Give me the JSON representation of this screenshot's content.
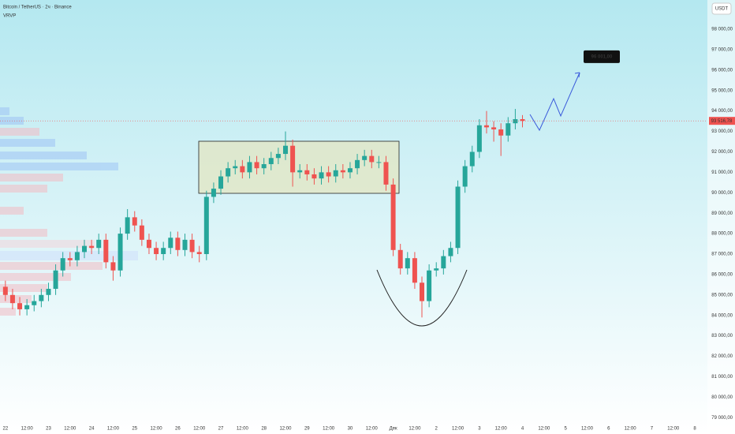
{
  "chart_data": {
    "type": "candlestick",
    "title": "Bitcoin / TetherUS · 2ч · Binance",
    "subtitle": "VRVP",
    "currency_button": "USDT",
    "up_color": "#26a69a",
    "down_color": "#ef5350",
    "x": [
      0,
      4,
      8,
      12,
      16,
      20,
      24,
      28,
      32,
      36,
      40,
      44,
      48,
      52,
      56,
      60,
      64,
      68,
      72,
      76,
      80,
      84,
      88,
      92,
      96,
      100,
      104,
      108,
      112,
      116,
      120,
      124,
      128,
      132,
      136,
      140,
      144,
      148,
      152,
      156,
      160,
      164,
      168,
      172,
      176,
      180,
      184,
      188,
      192,
      196,
      200,
      204,
      208,
      212,
      216,
      220,
      224,
      228,
      232,
      236,
      240,
      244,
      248,
      252,
      256,
      260,
      264,
      268,
      272,
      276,
      280,
      284,
      288
    ],
    "open": [
      85400,
      85000,
      84600,
      84300,
      84500,
      84700,
      85000,
      85300,
      86200,
      86800,
      86700,
      87100,
      87400,
      87300,
      87700,
      86600,
      86200,
      88000,
      88800,
      88400,
      87700,
      87300,
      87000,
      87300,
      87800,
      87200,
      87700,
      87100,
      87000,
      89800,
      90200,
      90800,
      91200,
      91300,
      91000,
      91500,
      91200,
      91400,
      91700,
      91900,
      92300,
      91000,
      91100,
      90900,
      90700,
      91000,
      90800,
      91100,
      91000,
      91200,
      91600,
      91800,
      91500,
      91500,
      90400,
      87200,
      86300,
      86800,
      85600,
      84700,
      86200,
      86300,
      86900,
      87300,
      90300,
      91300,
      92000,
      93300,
      93200,
      93100,
      92800,
      93400,
      93600
    ],
    "high": [
      85700,
      85300,
      84900,
      84800,
      85000,
      85300,
      85600,
      86500,
      87100,
      87100,
      87400,
      87700,
      87700,
      88000,
      88000,
      86900,
      88300,
      89200,
      89100,
      88700,
      88000,
      87600,
      87600,
      88100,
      88100,
      88000,
      88000,
      87400,
      90100,
      90500,
      91100,
      91500,
      91600,
      91600,
      91800,
      91800,
      91700,
      92000,
      92200,
      93000,
      92600,
      91400,
      91400,
      91200,
      91300,
      91300,
      91400,
      91400,
      91500,
      91900,
      92100,
      92100,
      91800,
      91800,
      90700,
      87500,
      87100,
      87100,
      85900,
      86500,
      86600,
      87200,
      87600,
      90600,
      91600,
      92300,
      93600,
      94000,
      93500,
      93400,
      93700,
      94100,
      93800
    ],
    "low": [
      84700,
      84300,
      84000,
      84000,
      84200,
      84400,
      84700,
      85000,
      85900,
      86400,
      86400,
      86800,
      87000,
      87000,
      86300,
      85700,
      85900,
      87700,
      88100,
      87400,
      87000,
      86700,
      86700,
      87000,
      86900,
      86900,
      86800,
      86600,
      86700,
      89500,
      89900,
      90500,
      90900,
      90700,
      90700,
      90900,
      90900,
      91100,
      91400,
      91600,
      90300,
      90700,
      90600,
      90400,
      90400,
      90500,
      90500,
      90700,
      90700,
      90900,
      91300,
      91200,
      91200,
      90100,
      86900,
      86000,
      86000,
      85300,
      83900,
      84400,
      85900,
      86000,
      86600,
      87000,
      90000,
      91000,
      91700,
      92900,
      92500,
      91800,
      92500,
      93100,
      93200
    ],
    "close": [
      85000,
      84600,
      84300,
      84500,
      84700,
      85000,
      85300,
      86200,
      86800,
      86700,
      87100,
      87400,
      87300,
      87700,
      86600,
      86200,
      88000,
      88800,
      88400,
      87700,
      87300,
      87000,
      87300,
      87800,
      87200,
      87700,
      87100,
      87000,
      89800,
      90200,
      90800,
      91200,
      91300,
      91000,
      91500,
      91200,
      91400,
      91700,
      91900,
      92300,
      91000,
      91100,
      90900,
      90700,
      91000,
      90800,
      91100,
      91000,
      91200,
      91600,
      91800,
      91500,
      91500,
      90400,
      87200,
      86300,
      86800,
      85600,
      84700,
      86200,
      86300,
      86900,
      87300,
      90300,
      91300,
      92000,
      93300,
      93200,
      93100,
      92800,
      93400,
      93600,
      93517
    ],
    "last_price": {
      "value": 93516.78,
      "label": "93 516,78"
    },
    "target": {
      "value": 96001,
      "label": "96 001,00"
    },
    "xlim": [
      -3,
      391
    ],
    "ylim": [
      78700,
      99430
    ],
    "xticks": [
      {
        "value": 0,
        "label": "22"
      },
      {
        "value": 12,
        "label": "12:00"
      },
      {
        "value": 24,
        "label": "23"
      },
      {
        "value": 36,
        "label": "12:00"
      },
      {
        "value": 48,
        "label": "24"
      },
      {
        "value": 60,
        "label": "12:00"
      },
      {
        "value": 72,
        "label": "25"
      },
      {
        "value": 84,
        "label": "12:00"
      },
      {
        "value": 96,
        "label": "26"
      },
      {
        "value": 108,
        "label": "12:00"
      },
      {
        "value": 120,
        "label": "27"
      },
      {
        "value": 132,
        "label": "12:00"
      },
      {
        "value": 144,
        "label": "28"
      },
      {
        "value": 156,
        "label": "12:00"
      },
      {
        "value": 168,
        "label": "29"
      },
      {
        "value": 180,
        "label": "12:00"
      },
      {
        "value": 192,
        "label": "30"
      },
      {
        "value": 204,
        "label": "12:00"
      },
      {
        "value": 216,
        "label": "Дек"
      },
      {
        "value": 228,
        "label": "12:00"
      },
      {
        "value": 240,
        "label": "2"
      },
      {
        "value": 252,
        "label": "12:00"
      },
      {
        "value": 264,
        "label": "3"
      },
      {
        "value": 276,
        "label": "12:00"
      },
      {
        "value": 288,
        "label": "4"
      },
      {
        "value": 300,
        "label": "12:00"
      },
      {
        "value": 312,
        "label": "5"
      },
      {
        "value": 324,
        "label": "12:00"
      },
      {
        "value": 336,
        "label": "6"
      },
      {
        "value": 348,
        "label": "12:00"
      },
      {
        "value": 360,
        "label": "7"
      },
      {
        "value": 372,
        "label": "12:00"
      },
      {
        "value": 384,
        "label": "8"
      }
    ],
    "yticks": [
      {
        "value": 79000,
        "label": "79 000,00"
      },
      {
        "value": 80000,
        "label": "80 000,00"
      },
      {
        "value": 81000,
        "label": "81 000,00"
      },
      {
        "value": 82000,
        "label": "82 000,00"
      },
      {
        "value": 83000,
        "label": "83 000,00"
      },
      {
        "value": 84000,
        "label": "84 000,00"
      },
      {
        "value": 85000,
        "label": "85 000,00"
      },
      {
        "value": 86000,
        "label": "86 000,00"
      },
      {
        "value": 87000,
        "label": "87 000,00"
      },
      {
        "value": 88000,
        "label": "88 000,00"
      },
      {
        "value": 89000,
        "label": "89 000,00"
      },
      {
        "value": 90000,
        "label": "90 000,00"
      },
      {
        "value": 91000,
        "label": "91 000,00"
      },
      {
        "value": 92000,
        "label": "92 000,00"
      },
      {
        "value": 93000,
        "label": "93 000,00"
      },
      {
        "value": 94000,
        "label": "94 000,00"
      },
      {
        "value": 95000,
        "label": "95 000,00"
      },
      {
        "value": 96000,
        "label": "96 000,00"
      },
      {
        "value": 97000,
        "label": "97 000,00"
      },
      {
        "value": 98000,
        "label": "98 000,00"
      }
    ],
    "grid": false
  }
}
